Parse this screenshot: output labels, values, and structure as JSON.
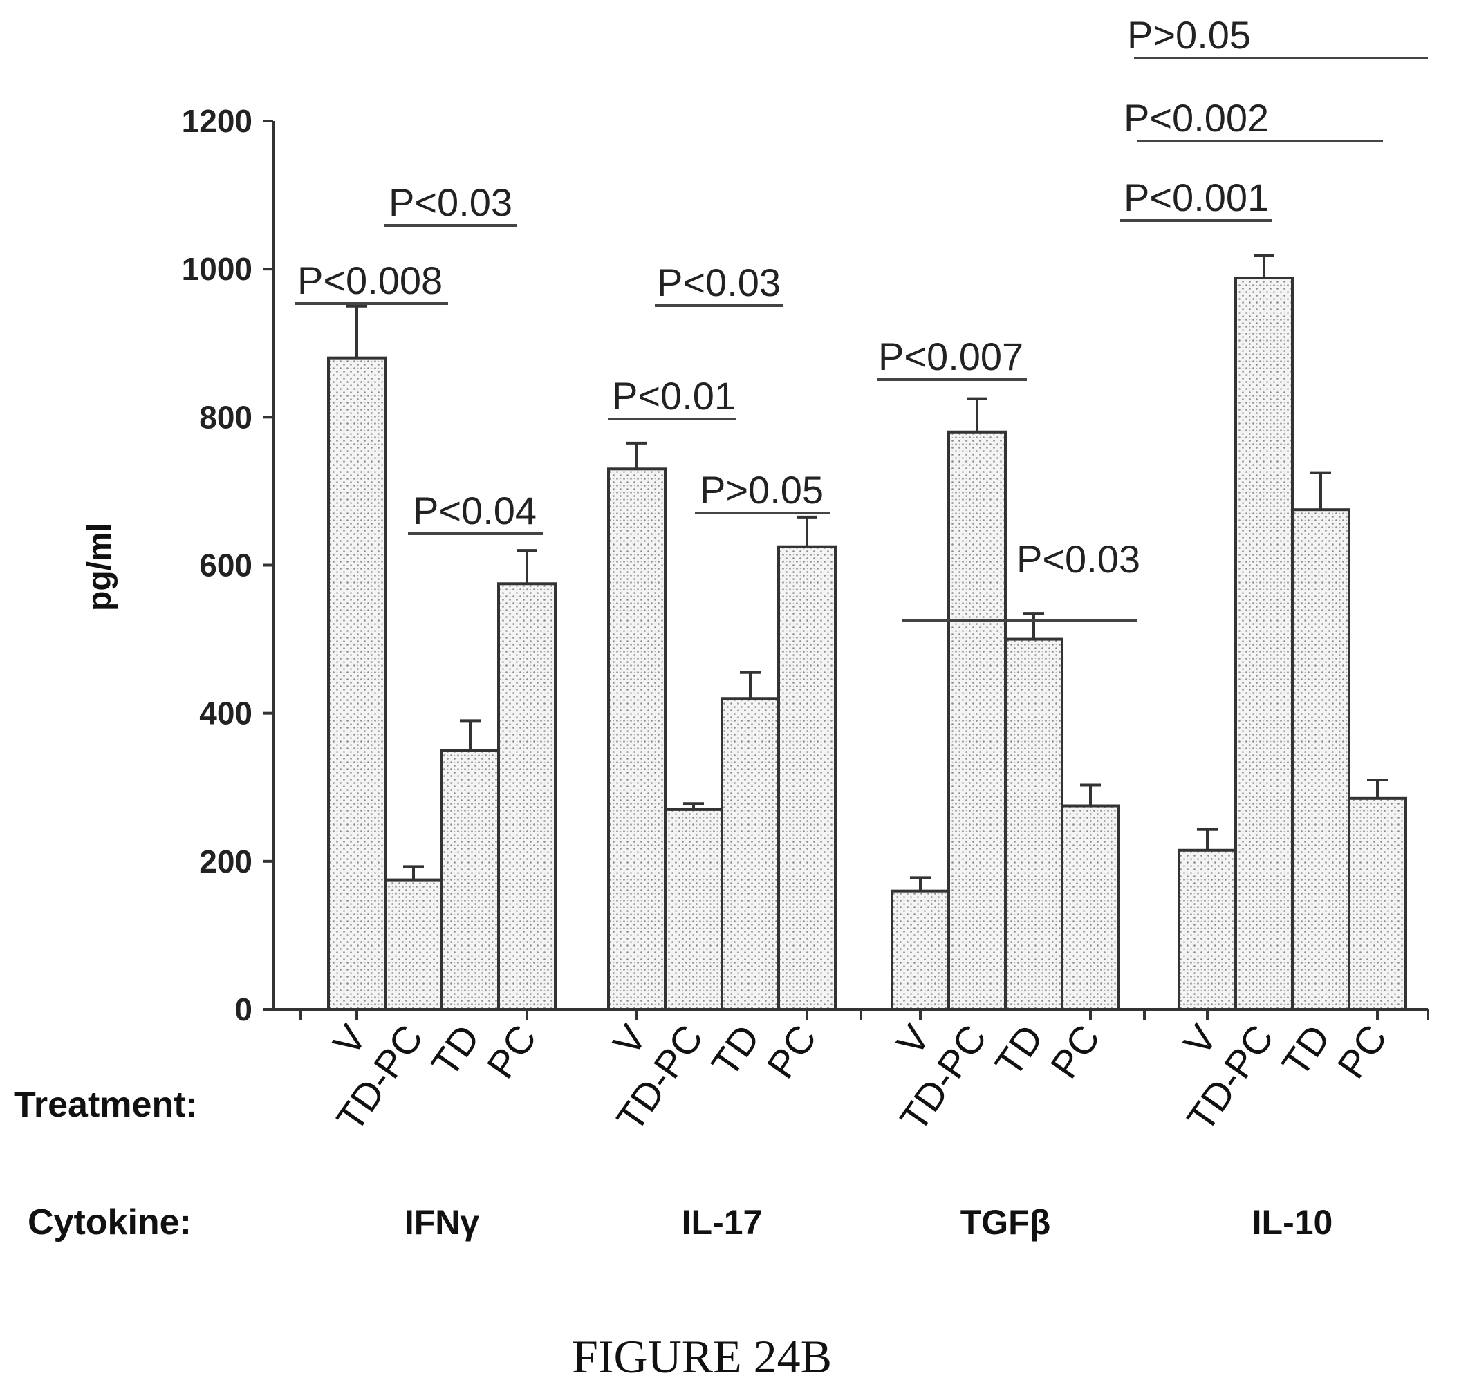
{
  "chart_data": {
    "type": "bar",
    "ylabel": "pg/ml",
    "ylim": [
      0,
      1200
    ],
    "yticks": [
      0,
      200,
      400,
      600,
      800,
      1000,
      1200
    ],
    "grid": false,
    "row_labels": {
      "treatment": "Treatment:",
      "cytokine": "Cytokine:"
    },
    "treatments": [
      "V",
      "TD-PC",
      "TD",
      "PC"
    ],
    "groups": [
      {
        "cytokine": "IFNγ",
        "values": [
          880,
          175,
          350,
          575
        ],
        "errors": [
          70,
          18,
          40,
          45
        ]
      },
      {
        "cytokine": "IL-17",
        "values": [
          730,
          270,
          420,
          625
        ],
        "errors": [
          35,
          8,
          35,
          40
        ]
      },
      {
        "cytokine": "TGFβ",
        "values": [
          160,
          780,
          500,
          275
        ],
        "errors": [
          18,
          45,
          35,
          28
        ]
      },
      {
        "cytokine": "IL-10",
        "values": [
          215,
          988,
          675,
          285
        ],
        "errors": [
          28,
          30,
          50,
          25
        ]
      }
    ],
    "annotations": [
      {
        "text": "P<0.008"
      },
      {
        "text": "P<0.03"
      },
      {
        "text": "P<0.04"
      },
      {
        "text": "P<0.01"
      },
      {
        "text": "P<0.03"
      },
      {
        "text": "P>0.05"
      },
      {
        "text": "P<0.007"
      },
      {
        "text": "P<0.03"
      },
      {
        "text": "P>0.05"
      },
      {
        "text": "P<0.002"
      },
      {
        "text": "P<0.001"
      }
    ]
  },
  "caption": "FIGURE 24B"
}
